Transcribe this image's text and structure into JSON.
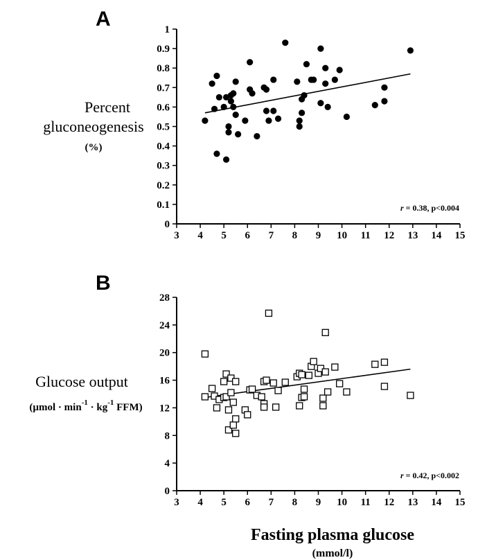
{
  "chart_data": [
    {
      "type": "scatter",
      "panel": "A",
      "ylabel": [
        "Percent",
        "gluconeogenesis",
        "(%)"
      ],
      "xlim": [
        3,
        15
      ],
      "ylim": [
        0,
        1
      ],
      "xticks": [
        "3",
        "4",
        "5",
        "6",
        "7",
        "8",
        "9",
        "10",
        "11",
        "12",
        "13",
        "14",
        "15"
      ],
      "yticks": [
        "0",
        "0.1",
        "0.2",
        "0.3",
        "0.4",
        "0.5",
        "0.6",
        "0.7",
        "0.8",
        "0.9",
        "1"
      ],
      "annotation_r": "r",
      "annotation_rest": " = 0.38, p<0.004",
      "marker": "filled-circle",
      "fit_line": {
        "x": [
          4.2,
          12.9
        ],
        "y": [
          0.57,
          0.77
        ]
      },
      "points": [
        [
          4.2,
          0.53
        ],
        [
          4.5,
          0.72
        ],
        [
          4.6,
          0.59
        ],
        [
          4.7,
          0.76
        ],
        [
          4.7,
          0.36
        ],
        [
          4.8,
          0.65
        ],
        [
          5.0,
          0.6
        ],
        [
          5.1,
          0.33
        ],
        [
          5.1,
          0.65
        ],
        [
          5.2,
          0.47
        ],
        [
          5.2,
          0.5
        ],
        [
          5.3,
          0.63
        ],
        [
          5.3,
          0.66
        ],
        [
          5.4,
          0.67
        ],
        [
          5.4,
          0.6
        ],
        [
          5.5,
          0.56
        ],
        [
          5.5,
          0.73
        ],
        [
          5.6,
          0.46
        ],
        [
          5.9,
          0.53
        ],
        [
          6.1,
          0.69
        ],
        [
          6.1,
          0.83
        ],
        [
          6.2,
          0.67
        ],
        [
          6.4,
          0.45
        ],
        [
          6.7,
          0.7
        ],
        [
          6.8,
          0.69
        ],
        [
          6.8,
          0.58
        ],
        [
          6.9,
          0.53
        ],
        [
          7.1,
          0.74
        ],
        [
          7.1,
          0.58
        ],
        [
          7.3,
          0.54
        ],
        [
          7.6,
          0.93
        ],
        [
          8.1,
          0.73
        ],
        [
          8.2,
          0.53
        ],
        [
          8.2,
          0.5
        ],
        [
          8.3,
          0.64
        ],
        [
          8.3,
          0.57
        ],
        [
          8.4,
          0.66
        ],
        [
          8.5,
          0.82
        ],
        [
          8.7,
          0.74
        ],
        [
          8.8,
          0.74
        ],
        [
          9.1,
          0.9
        ],
        [
          9.1,
          0.62
        ],
        [
          9.3,
          0.72
        ],
        [
          9.3,
          0.8
        ],
        [
          9.4,
          0.6
        ],
        [
          9.7,
          0.74
        ],
        [
          9.9,
          0.79
        ],
        [
          10.2,
          0.55
        ],
        [
          11.4,
          0.61
        ],
        [
          11.8,
          0.7
        ],
        [
          11.8,
          0.63
        ],
        [
          12.9,
          0.89
        ]
      ]
    },
    {
      "type": "scatter",
      "panel": "B",
      "ylabel_line1": "Glucose output",
      "ylabel_unit_parts": [
        "(µmol · min",
        "-1",
        " · kg",
        "-1",
        " FFM)"
      ],
      "xlim": [
        3,
        15
      ],
      "ylim": [
        0,
        28
      ],
      "xticks": [
        "3",
        "4",
        "5",
        "6",
        "7",
        "8",
        "9",
        "10",
        "11",
        "12",
        "13",
        "14",
        "15"
      ],
      "yticks": [
        "0",
        "4",
        "8",
        "12",
        "16",
        "20",
        "24",
        "28"
      ],
      "annotation_r": "r",
      "annotation_rest": " = 0.42, p<0.002",
      "marker": "open-square",
      "fit_line": {
        "x": [
          4.2,
          12.9
        ],
        "y": [
          13.5,
          17.6
        ]
      },
      "points": [
        [
          4.2,
          19.8
        ],
        [
          4.2,
          13.6
        ],
        [
          4.5,
          14.8
        ],
        [
          4.6,
          13.7
        ],
        [
          4.7,
          12.0
        ],
        [
          4.8,
          13.2
        ],
        [
          5.0,
          13.5
        ],
        [
          5.0,
          15.8
        ],
        [
          5.1,
          16.9
        ],
        [
          5.1,
          13.6
        ],
        [
          5.2,
          8.8
        ],
        [
          5.2,
          11.7
        ],
        [
          5.3,
          14.2
        ],
        [
          5.3,
          16.3
        ],
        [
          5.4,
          12.8
        ],
        [
          5.4,
          9.5
        ],
        [
          5.5,
          15.8
        ],
        [
          5.5,
          8.3
        ],
        [
          5.5,
          10.4
        ],
        [
          5.9,
          11.7
        ],
        [
          6.0,
          11.0
        ],
        [
          6.1,
          14.6
        ],
        [
          6.2,
          14.7
        ],
        [
          6.4,
          13.8
        ],
        [
          6.6,
          13.6
        ],
        [
          6.7,
          15.8
        ],
        [
          6.7,
          12.6
        ],
        [
          6.7,
          12.1
        ],
        [
          6.8,
          16.0
        ],
        [
          6.9,
          25.7
        ],
        [
          7.1,
          15.6
        ],
        [
          7.2,
          12.1
        ],
        [
          7.3,
          14.5
        ],
        [
          7.6,
          15.7
        ],
        [
          8.1,
          16.5
        ],
        [
          8.2,
          17.0
        ],
        [
          8.2,
          12.3
        ],
        [
          8.3,
          13.5
        ],
        [
          8.3,
          16.8
        ],
        [
          8.4,
          14.7
        ],
        [
          8.4,
          13.6
        ],
        [
          8.6,
          16.7
        ],
        [
          8.7,
          18.0
        ],
        [
          8.8,
          18.7
        ],
        [
          9.0,
          17.0
        ],
        [
          9.1,
          17.7
        ],
        [
          9.2,
          12.3
        ],
        [
          9.2,
          13.4
        ],
        [
          9.3,
          17.2
        ],
        [
          9.3,
          22.9
        ],
        [
          9.4,
          14.3
        ],
        [
          9.7,
          17.9
        ],
        [
          9.9,
          15.5
        ],
        [
          10.2,
          14.3
        ],
        [
          11.4,
          18.3
        ],
        [
          11.8,
          18.6
        ],
        [
          11.8,
          15.1
        ],
        [
          12.9,
          13.8
        ]
      ]
    }
  ],
  "shared": {
    "xlabel": "Fasting plasma glucose",
    "xlabel_unit": "(mmol/l)"
  },
  "colors": {
    "ink": "#000000",
    "background": "#ffffff"
  }
}
